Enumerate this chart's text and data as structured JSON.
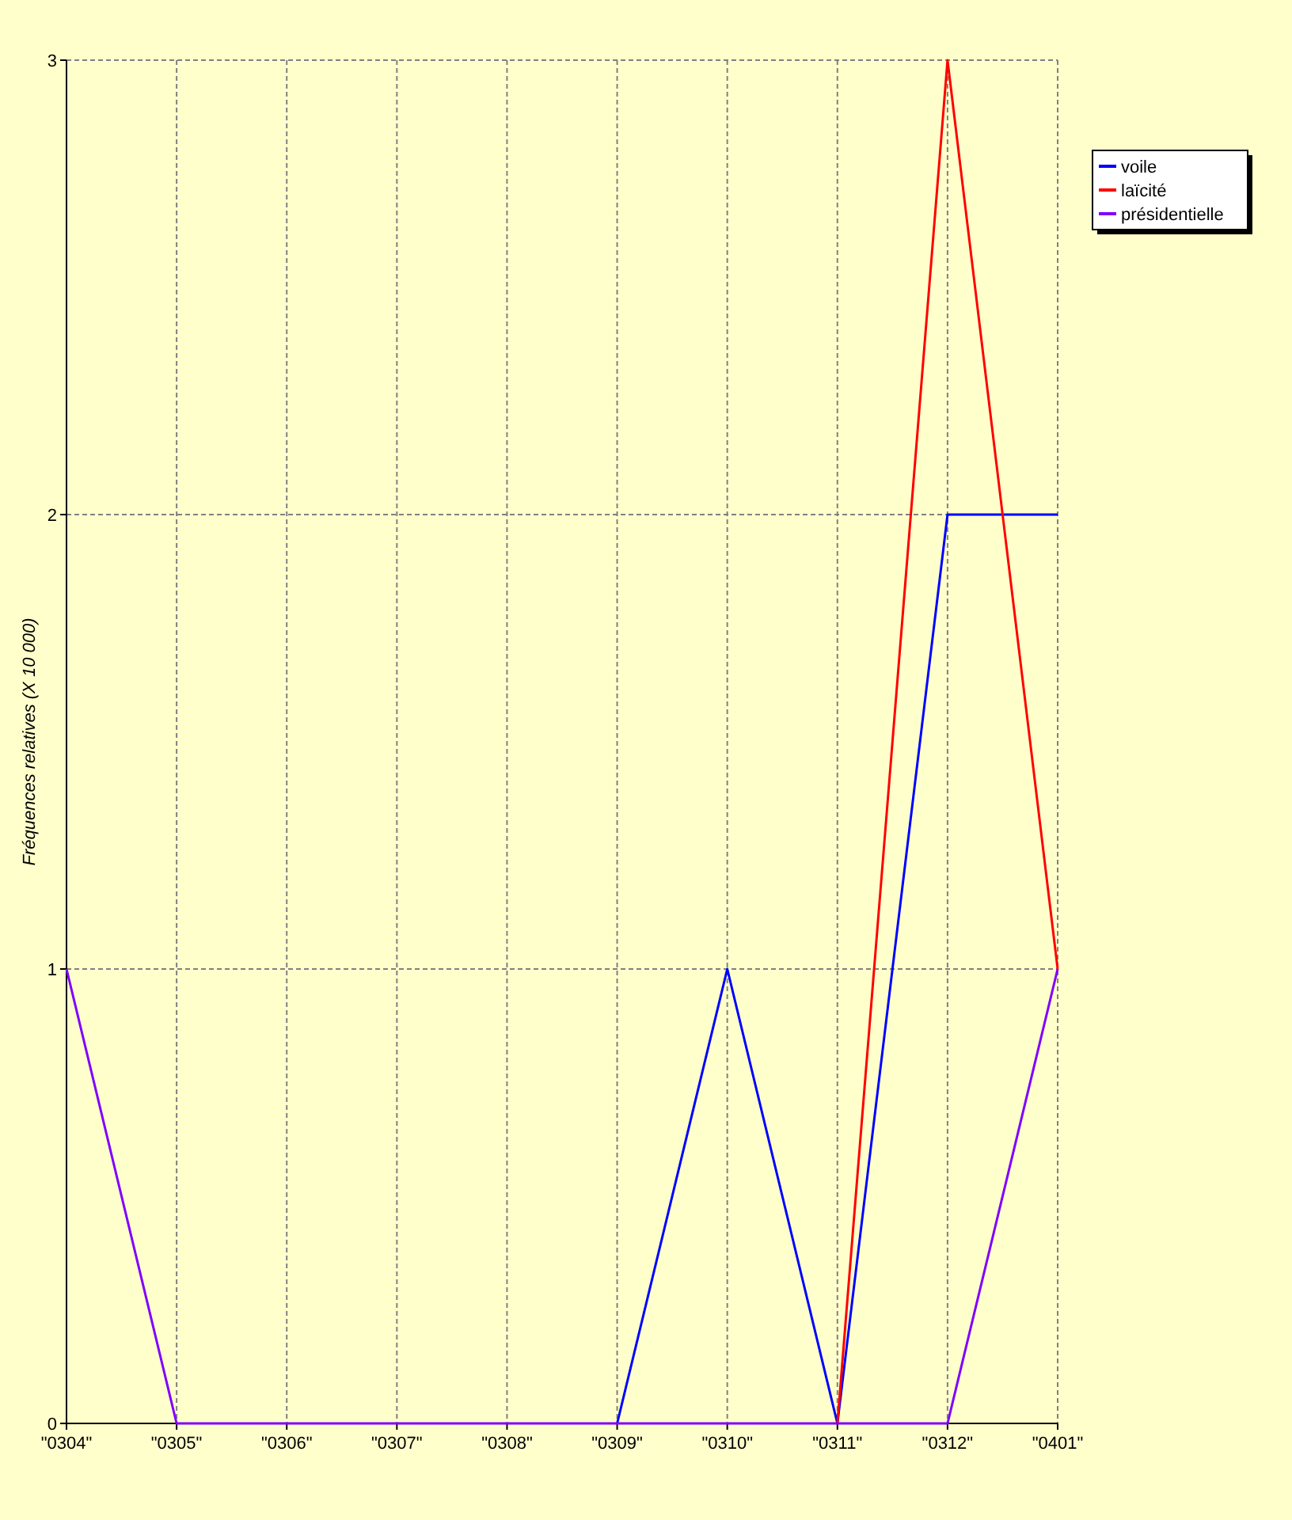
{
  "chart_data": {
    "type": "line",
    "ylabel": "Fréquences relatives (X 10 000)",
    "categories": [
      "\"0304\"",
      "\"0305\"",
      "\"0306\"",
      "\"0307\"",
      "\"0308\"",
      "\"0309\"",
      "\"0310\"",
      "\"0311\"",
      "\"0312\"",
      "\"0401\""
    ],
    "series": [
      {
        "name": "voile",
        "color": "#0000ff",
        "values": [
          null,
          null,
          null,
          null,
          null,
          0,
          1,
          0,
          2,
          2
        ]
      },
      {
        "name": "laïcité",
        "color": "#ff0000",
        "values": [
          null,
          null,
          null,
          null,
          null,
          null,
          null,
          0,
          3,
          1
        ]
      },
      {
        "name": "présidentielle",
        "color": "#8000ff",
        "values": [
          1,
          0,
          0,
          0,
          0,
          0,
          0,
          0,
          0,
          1
        ]
      }
    ],
    "ylim": [
      0,
      3
    ],
    "yticks": [
      0,
      1,
      2,
      3
    ],
    "grid": true,
    "legend": "top right",
    "marker": "none",
    "line_style": "solid"
  }
}
